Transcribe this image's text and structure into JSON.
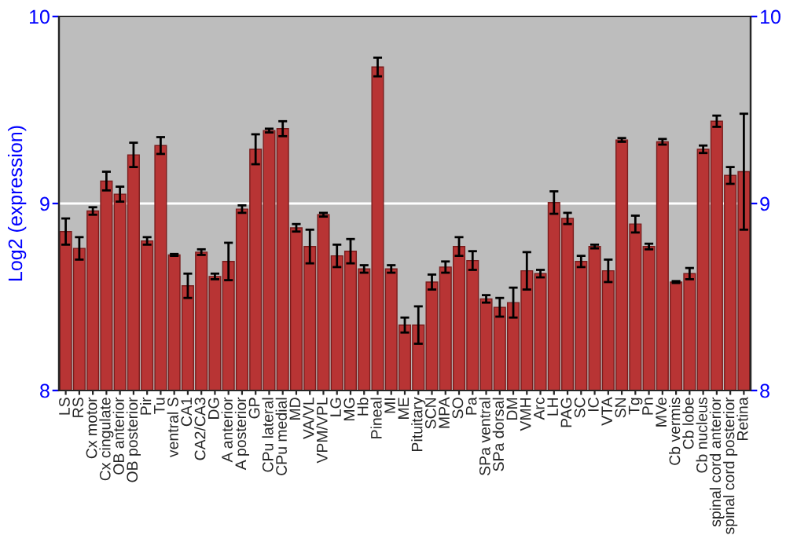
{
  "chart_data": {
    "type": "bar",
    "ylabel": "Log2 (expression)",
    "categories": [
      "LS",
      "RS",
      "Cx motor",
      "Cx cingulate",
      "OB anterior",
      "OB posterior",
      "Pir",
      "Tu",
      "ventral S",
      "CA1",
      "CA2/CA3",
      "DG",
      "A anterior",
      "A posterior",
      "GP",
      "CPu lateral",
      "CPu medial",
      "MD",
      "VA/VL",
      "VPM/VPL",
      "LG",
      "MG",
      "Hb",
      "Pineal",
      "MI",
      "ME",
      "Pituitary",
      "SCN",
      "MPA",
      "SO",
      "Pa",
      "SPa ventral",
      "SPa dorsal",
      "DM",
      "VMH",
      "Arc",
      "LH",
      "PAG",
      "SC",
      "IC",
      "VTA",
      "SN",
      "Tg",
      "Pn",
      "MVe",
      "Cb vermis",
      "Cb lobe",
      "Cb nucleus",
      "spinal cord anterior",
      "spinal cord posterior",
      "Retina"
    ],
    "series": [
      {
        "color": "#b83434",
        "values": [
          8.85,
          8.76,
          8.96,
          9.12,
          9.05,
          9.26,
          8.8,
          9.31,
          8.725,
          8.56,
          8.74,
          8.61,
          8.69,
          8.97,
          9.29,
          9.39,
          9.4,
          8.87,
          8.77,
          8.94,
          8.72,
          8.745,
          8.65,
          9.73,
          8.65,
          8.35,
          8.35,
          8.58,
          8.66,
          8.77,
          8.695,
          8.49,
          8.445,
          8.47,
          8.64,
          8.625,
          9.005,
          8.92,
          8.69,
          8.77,
          8.64,
          9.34,
          8.89,
          8.77,
          9.33,
          8.58,
          8.625,
          9.29,
          9.44,
          9.15,
          9.17
        ],
        "errors": [
          0.07,
          0.06,
          0.02,
          0.05,
          0.04,
          0.065,
          0.02,
          0.045,
          0.005,
          0.065,
          0.015,
          0.015,
          0.1,
          0.02,
          0.08,
          0.01,
          0.04,
          0.02,
          0.09,
          0.01,
          0.06,
          0.065,
          0.02,
          0.05,
          0.02,
          0.04,
          0.1,
          0.04,
          0.03,
          0.05,
          0.05,
          0.02,
          0.05,
          0.08,
          0.1,
          0.02,
          0.06,
          0.03,
          0.03,
          0.01,
          0.06,
          0.01,
          0.045,
          0.015,
          0.015,
          0.005,
          0.03,
          0.02,
          0.03,
          0.045,
          0.31
        ]
      }
    ],
    "ylim": [
      8,
      10
    ],
    "yticks": [
      8,
      9,
      10
    ],
    "y2lim": [
      8,
      10
    ],
    "y2ticks": [
      8,
      9,
      10
    ],
    "grid": "y",
    "legend": false
  }
}
